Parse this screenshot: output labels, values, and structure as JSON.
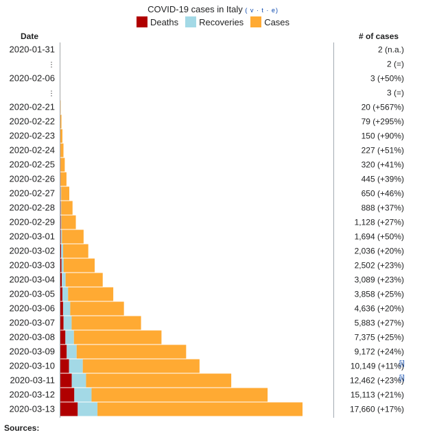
{
  "title": "COVID-19 cases in Italy",
  "vte": {
    "v": "v",
    "t": "t",
    "e": "e"
  },
  "legend": [
    {
      "label": "Deaths",
      "color": "#b00000"
    },
    {
      "label": "Recoveries",
      "color": "#a3d9e6"
    },
    {
      "label": "Cases",
      "color": "#ffaa33"
    }
  ],
  "headers": {
    "date": "Date",
    "cases": "# of cases"
  },
  "sources_label": "Sources:",
  "footnote_mark": "[i]",
  "chart_data": {
    "type": "bar",
    "orientation": "horizontal",
    "stacked": true,
    "title": "COVID-19 cases in Italy",
    "categories": [
      "2020-01-31",
      "⋮",
      "2020-02-06",
      "⋮",
      "2020-02-21",
      "2020-02-22",
      "2020-02-23",
      "2020-02-24",
      "2020-02-25",
      "2020-02-26",
      "2020-02-27",
      "2020-02-28",
      "2020-02-29",
      "2020-03-01",
      "2020-03-02",
      "2020-03-03",
      "2020-03-04",
      "2020-03-05",
      "2020-03-06",
      "2020-03-07",
      "2020-03-08",
      "2020-03-09",
      "2020-03-10",
      "2020-03-11",
      "2020-03-12",
      "2020-03-13"
    ],
    "series": [
      {
        "name": "Deaths",
        "color": "#b00000",
        "values": [
          0,
          0,
          0,
          0,
          1,
          2,
          3,
          7,
          10,
          12,
          17,
          21,
          29,
          34,
          52,
          79,
          107,
          148,
          197,
          233,
          366,
          463,
          631,
          827,
          1016,
          1266
        ]
      },
      {
        "name": "Recoveries",
        "color": "#a3d9e6",
        "values": [
          0,
          0,
          0,
          0,
          0,
          0,
          0,
          1,
          1,
          3,
          45,
          46,
          46,
          83,
          149,
          160,
          276,
          414,
          523,
          589,
          622,
          724,
          1004,
          1045,
          1258,
          1439
        ]
      },
      {
        "name": "Cases",
        "color": "#ffaa33",
        "values": [
          2,
          2,
          3,
          3,
          19,
          77,
          147,
          219,
          309,
          430,
          588,
          821,
          1053,
          1577,
          1835,
          2263,
          2706,
          3296,
          3916,
          5061,
          6387,
          7985,
          8514,
          10590,
          12839,
          14955
        ]
      }
    ],
    "total_labels": [
      "2 (n.a.)",
      "2 (=)",
      "3 (+50%)",
      "3 (=)",
      "20 (+567%)",
      "79 (+295%)",
      "150 (+90%)",
      "227 (+51%)",
      "320 (+41%)",
      "445 (+39%)",
      "650 (+46%)",
      "888 (+37%)",
      "1,128 (+27%)",
      "1,694 (+50%)",
      "2,036 (+20%)",
      "2,502 (+23%)",
      "3,089 (+23%)",
      "3,858 (+25%)",
      "4,636 (+20%)",
      "5,883 (+27%)",
      "7,375 (+25%)",
      "9,172 (+24%)",
      "10,149 (+11%)",
      "12,462 (+23%)",
      "15,113 (+21%)",
      "17,660 (+17%)"
    ],
    "footnote_rows": [
      22,
      23
    ],
    "xlim": [
      0,
      17660
    ]
  }
}
